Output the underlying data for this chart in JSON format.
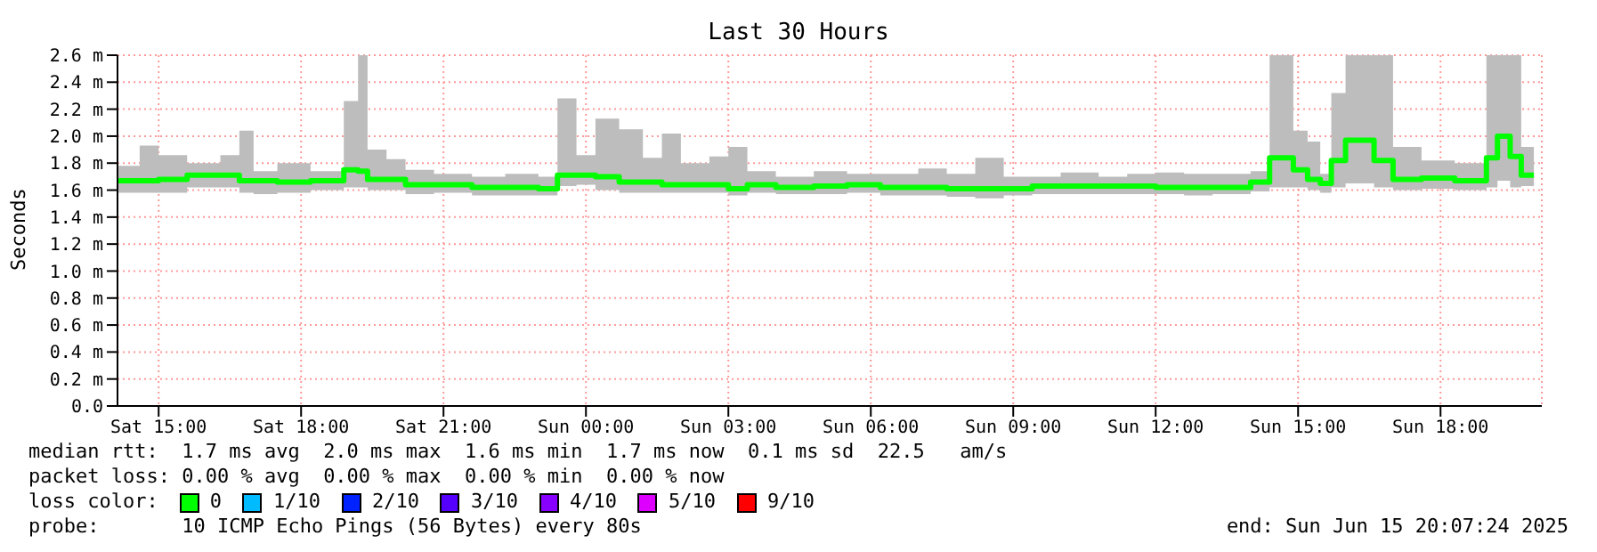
{
  "chart_data": {
    "type": "step",
    "title": "Last 30 Hours",
    "ylabel": "Seconds",
    "x": [
      "2025-06-14T14:08",
      "2025-06-14T14:36",
      "2025-06-14T15:00",
      "2025-06-14T15:36",
      "2025-06-14T16:18",
      "2025-06-14T16:42",
      "2025-06-14T17:00",
      "2025-06-14T17:30",
      "2025-06-14T18:12",
      "2025-06-14T18:54",
      "2025-06-14T19:12",
      "2025-06-14T19:24",
      "2025-06-14T19:48",
      "2025-06-14T20:12",
      "2025-06-14T20:48",
      "2025-06-14T21:36",
      "2025-06-14T22:18",
      "2025-06-14T23:00",
      "2025-06-14T23:24",
      "2025-06-14T23:48",
      "2025-06-15T00:12",
      "2025-06-15T00:42",
      "2025-06-15T01:12",
      "2025-06-15T01:36",
      "2025-06-15T02:00",
      "2025-06-15T02:36",
      "2025-06-15T03:00",
      "2025-06-15T03:24",
      "2025-06-15T04:00",
      "2025-06-15T04:48",
      "2025-06-15T05:30",
      "2025-06-15T06:12",
      "2025-06-15T07:00",
      "2025-06-15T07:36",
      "2025-06-15T08:12",
      "2025-06-15T08:48",
      "2025-06-15T09:24",
      "2025-06-15T10:00",
      "2025-06-15T10:48",
      "2025-06-15T11:24",
      "2025-06-15T12:00",
      "2025-06-15T12:36",
      "2025-06-15T13:12",
      "2025-06-15T14:00",
      "2025-06-15T14:24",
      "2025-06-15T14:54",
      "2025-06-15T15:12",
      "2025-06-15T15:28",
      "2025-06-15T15:42",
      "2025-06-15T16:00",
      "2025-06-15T16:36",
      "2025-06-15T17:00",
      "2025-06-15T17:36",
      "2025-06-15T18:18",
      "2025-06-15T18:58",
      "2025-06-15T19:12",
      "2025-06-15T19:28",
      "2025-06-15T19:42",
      "2025-06-15T19:58"
    ],
    "series": [
      {
        "color": "#00ff00",
        "values": [
          1.67,
          1.67,
          1.68,
          1.71,
          1.71,
          1.67,
          1.67,
          1.66,
          1.67,
          1.75,
          1.74,
          1.68,
          1.68,
          1.64,
          1.64,
          1.62,
          1.62,
          1.61,
          1.71,
          1.71,
          1.7,
          1.66,
          1.66,
          1.64,
          1.64,
          1.64,
          1.61,
          1.64,
          1.62,
          1.63,
          1.64,
          1.62,
          1.62,
          1.61,
          1.61,
          1.61,
          1.63,
          1.63,
          1.63,
          1.63,
          1.62,
          1.62,
          1.62,
          1.66,
          1.84,
          1.75,
          1.68,
          1.65,
          1.82,
          1.97,
          1.82,
          1.68,
          1.69,
          1.67,
          1.84,
          2.0,
          1.85,
          1.71,
          1.71
        ],
        "lower": [
          1.58,
          1.58,
          1.58,
          1.62,
          1.62,
          1.58,
          1.57,
          1.58,
          1.6,
          1.62,
          1.62,
          1.6,
          1.6,
          1.57,
          1.58,
          1.56,
          1.56,
          1.56,
          1.63,
          1.64,
          1.6,
          1.58,
          1.58,
          1.58,
          1.58,
          1.58,
          1.56,
          1.58,
          1.57,
          1.57,
          1.58,
          1.56,
          1.56,
          1.55,
          1.54,
          1.56,
          1.57,
          1.57,
          1.57,
          1.57,
          1.57,
          1.56,
          1.57,
          1.59,
          1.62,
          1.62,
          1.6,
          1.58,
          1.62,
          1.65,
          1.62,
          1.6,
          1.61,
          1.6,
          1.62,
          1.67,
          1.62,
          1.63,
          1.63
        ],
        "upper": [
          1.78,
          1.93,
          1.86,
          1.8,
          1.86,
          2.04,
          1.74,
          1.8,
          1.74,
          2.26,
          2.6,
          1.9,
          1.83,
          1.75,
          1.72,
          1.7,
          1.72,
          1.7,
          2.28,
          1.86,
          2.13,
          2.05,
          1.84,
          2.02,
          1.8,
          1.85,
          1.92,
          1.74,
          1.7,
          1.74,
          1.72,
          1.72,
          1.76,
          1.72,
          1.84,
          1.7,
          1.7,
          1.73,
          1.7,
          1.72,
          1.73,
          1.72,
          1.72,
          1.74,
          2.6,
          2.04,
          1.96,
          1.72,
          2.32,
          2.6,
          2.6,
          1.92,
          1.82,
          1.8,
          2.6,
          2.6,
          2.6,
          1.92,
          1.92
        ]
      }
    ],
    "xlim": [
      "2025-06-14T14:08",
      "2025-06-15T20:08"
    ],
    "xticks": [
      {
        "value": "2025-06-14T15:00",
        "label": "Sat 15:00"
      },
      {
        "value": "2025-06-14T18:00",
        "label": "Sat 18:00"
      },
      {
        "value": "2025-06-14T21:00",
        "label": "Sat 21:00"
      },
      {
        "value": "2025-06-15T00:00",
        "label": "Sun 00:00"
      },
      {
        "value": "2025-06-15T03:00",
        "label": "Sun 03:00"
      },
      {
        "value": "2025-06-15T06:00",
        "label": "Sun 06:00"
      },
      {
        "value": "2025-06-15T09:00",
        "label": "Sun 09:00"
      },
      {
        "value": "2025-06-15T12:00",
        "label": "Sun 12:00"
      },
      {
        "value": "2025-06-15T15:00",
        "label": "Sun 15:00"
      },
      {
        "value": "2025-06-15T18:00",
        "label": "Sun 18:00"
      }
    ],
    "ylim": [
      0,
      2.6
    ],
    "yticks": [
      {
        "value": 0,
        "label": "0.0"
      },
      {
        "value": 0.2,
        "label": "0.2 m"
      },
      {
        "value": 0.4,
        "label": "0.4 m"
      },
      {
        "value": 0.6,
        "label": "0.6 m"
      },
      {
        "value": 0.8,
        "label": "0.8 m"
      },
      {
        "value": 1.0,
        "label": "1.0 m"
      },
      {
        "value": 1.2,
        "label": "1.2 m"
      },
      {
        "value": 1.4,
        "label": "1.4 m"
      },
      {
        "value": 1.6,
        "label": "1.6 m"
      },
      {
        "value": 1.8,
        "label": "1.8 m"
      },
      {
        "value": 2.0,
        "label": "2.0 m"
      },
      {
        "value": 2.2,
        "label": "2.2 m"
      },
      {
        "value": 2.4,
        "label": "2.4 m"
      },
      {
        "value": 2.6,
        "label": "2.6 m"
      }
    ],
    "grid": true,
    "line_style": "solid",
    "annotations": [
      "median rtt:  1.7 ms avg  2.0 ms max  1.6 ms min  1.7 ms now  0.1 ms sd  22.5   am/s",
      "packet loss: 0.00 % avg  0.00 % max  0.00 % min  0.00 % now",
      "loss color:",
      "0",
      "1/10",
      "2/10",
      "3/10",
      "4/10",
      "5/10",
      "9/10",
      "probe:       10 ICMP Echo Pings (56 Bytes) every 80s",
      "end: Sun Jun 15 20:07:24 2025"
    ]
  }
}
